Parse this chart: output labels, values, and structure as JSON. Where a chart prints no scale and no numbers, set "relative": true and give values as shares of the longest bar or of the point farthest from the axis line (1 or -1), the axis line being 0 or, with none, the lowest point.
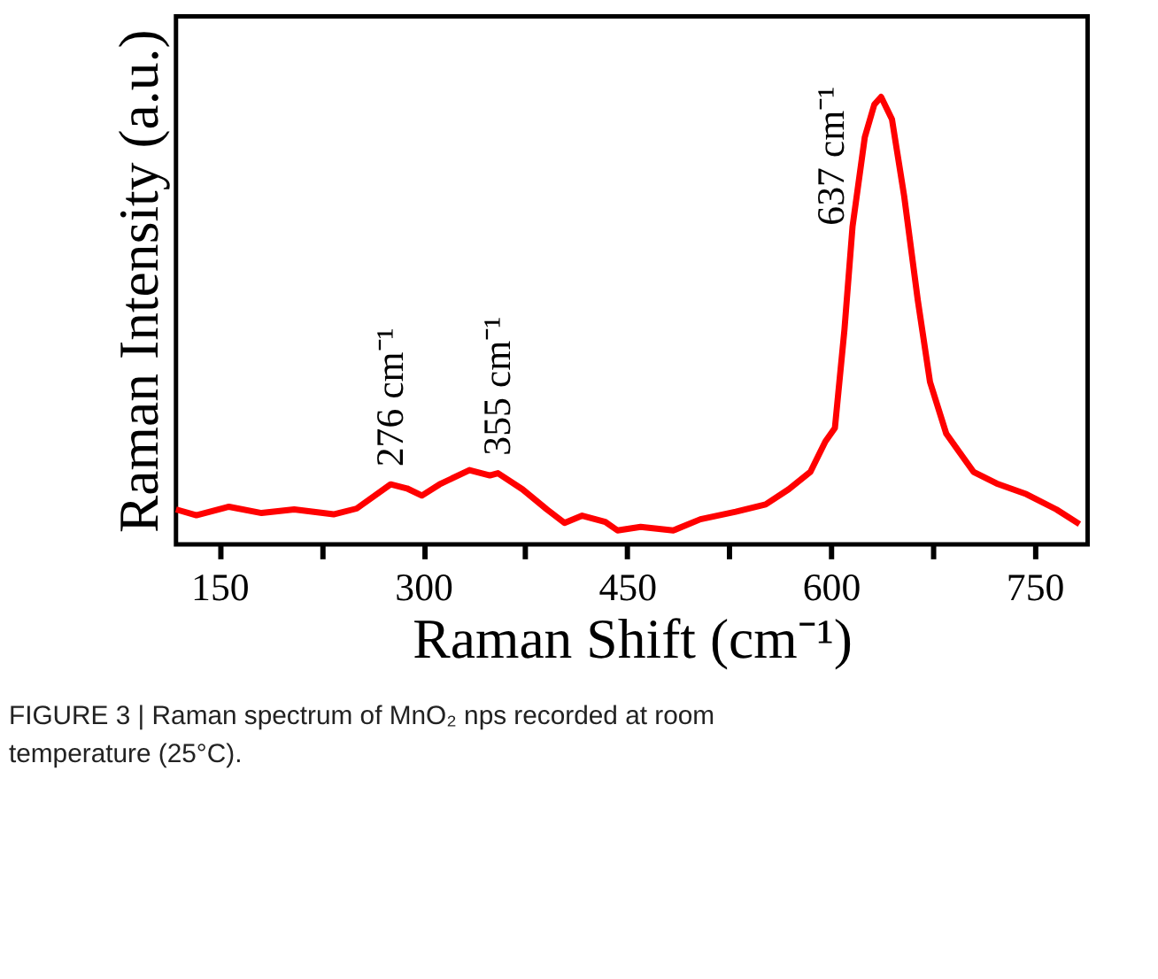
{
  "chart_data": {
    "type": "line",
    "relative": true,
    "xlabel": "Raman Shift (cm⁻¹)",
    "ylabel": "Raman Intensity (a.u.)",
    "xlim": [
      118,
      789
    ],
    "xticks": [
      150,
      {
        "value": 225,
        "label": null
      },
      300,
      {
        "value": 375,
        "label": null
      },
      450,
      {
        "value": 525,
        "label": null
      },
      600,
      {
        "value": 675,
        "label": null
      },
      750
    ],
    "tick_labels": "x",
    "grid": false,
    "marker": "none",
    "line_style": "solid",
    "series": [
      {
        "color": "#ff0000",
        "x": [
          118,
          133,
          157,
          181,
          205,
          234,
          251,
          276,
          288,
          299,
          312,
          334,
          349,
          355,
          373,
          391,
          404,
          417,
          434,
          443,
          460,
          484,
          504,
          530,
          552,
          569,
          585,
          596,
          603,
          610,
          616,
          625,
          632,
          637,
          645,
          654,
          664,
          673,
          685,
          705,
          722,
          744,
          766,
          783
        ],
        "values": [
          0.078,
          0.065,
          0.084,
          0.07,
          0.078,
          0.067,
          0.08,
          0.134,
          0.125,
          0.109,
          0.134,
          0.166,
          0.154,
          0.159,
          0.123,
          0.078,
          0.048,
          0.064,
          0.05,
          0.031,
          0.039,
          0.031,
          0.056,
          0.073,
          0.089,
          0.123,
          0.162,
          0.23,
          0.26,
          0.479,
          0.711,
          0.91,
          0.983,
          1.0,
          0.95,
          0.778,
          0.546,
          0.363,
          0.247,
          0.162,
          0.136,
          0.112,
          0.078,
          0.045
        ]
      }
    ],
    "annotations": [
      {
        "text": "276 cm⁻¹",
        "x": 276,
        "y": 0.134
      },
      {
        "text": "355 cm⁻¹",
        "x": 355,
        "y": 0.159
      },
      {
        "text": "637 cm⁻¹",
        "x": 637,
        "y": 1.0
      },
      "FIGURE 3 | Raman spectrum of MnO₂ nps recorded at room temperature (25°C)."
    ]
  }
}
